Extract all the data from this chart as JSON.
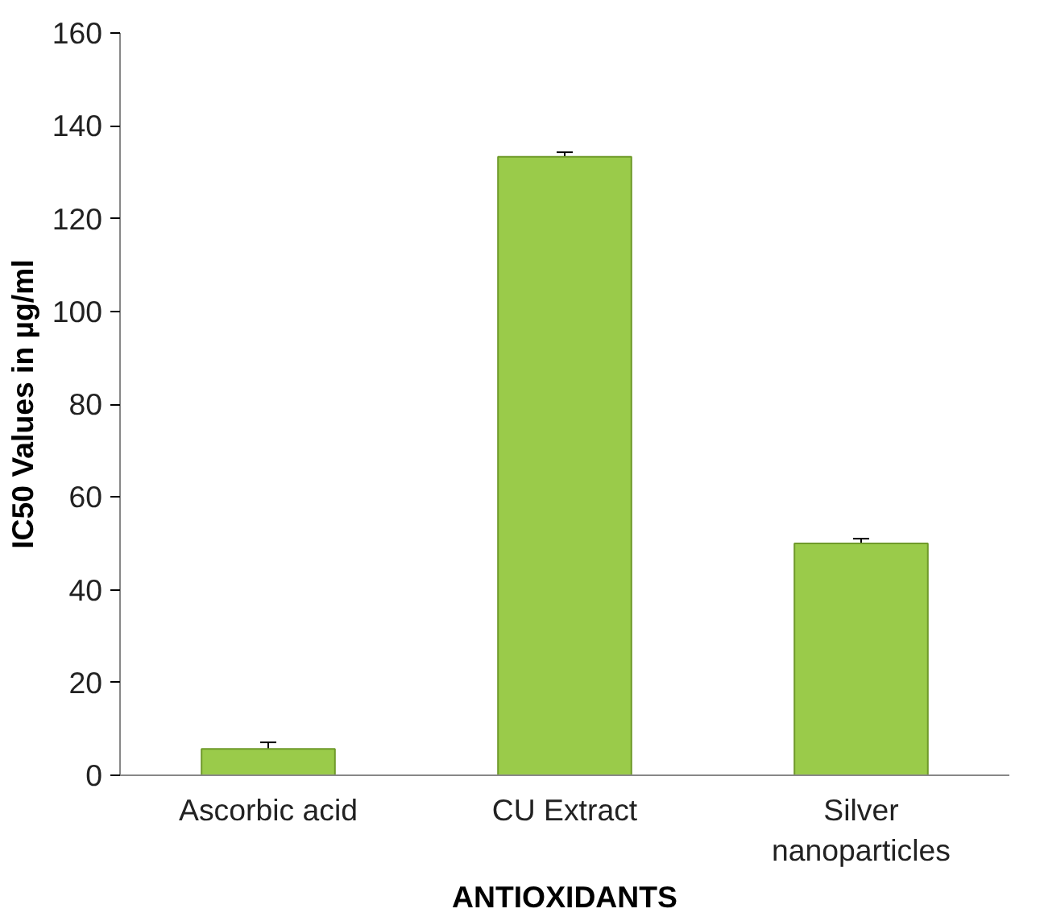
{
  "chart_data": {
    "type": "bar",
    "xlabel": "ANTIOXIDANTS",
    "ylabel": "IC50 Values in µg/ml",
    "categories": [
      "Ascorbic acid",
      "CU Extract",
      "Silver nanoparticles"
    ],
    "values": [
      5.7,
      133.3,
      50
    ],
    "errors": [
      1.4,
      1,
      1
    ],
    "color": "#9acb4a",
    "ylim": [
      0,
      160
    ],
    "yticks": [
      0,
      20,
      40,
      60,
      80,
      100,
      120,
      140,
      160
    ],
    "grid": false
  }
}
